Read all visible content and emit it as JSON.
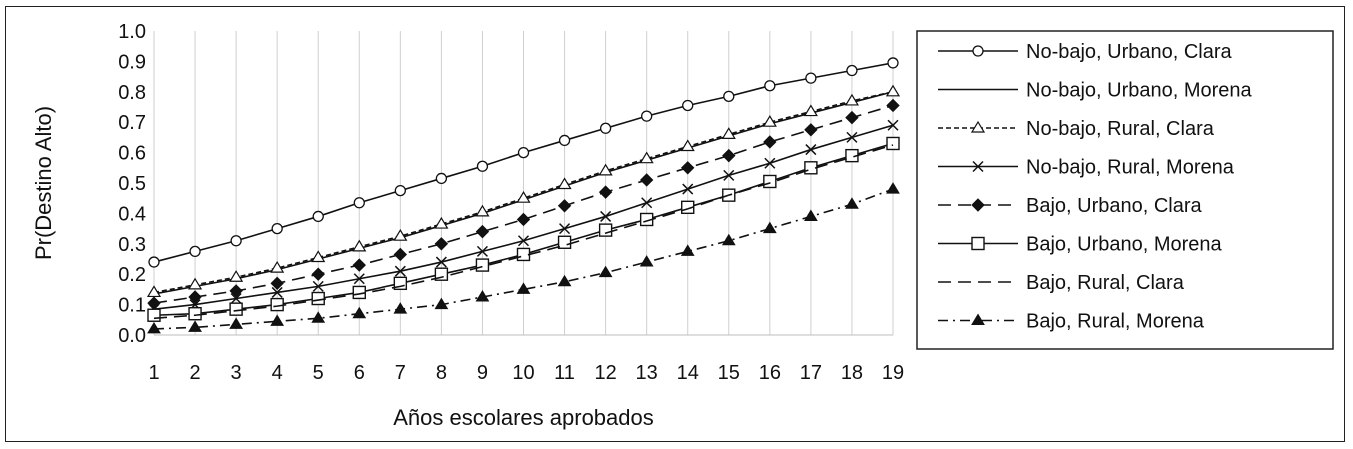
{
  "chart_data": {
    "type": "line",
    "xlabel": "Años escolares aprobados",
    "ylabel": "Pr(Destino Alto)",
    "x": [
      1,
      2,
      3,
      4,
      5,
      6,
      7,
      8,
      9,
      10,
      11,
      12,
      13,
      14,
      15,
      16,
      17,
      18,
      19
    ],
    "xlim": [
      1,
      19
    ],
    "ylim": [
      0.0,
      1.0
    ],
    "y_ticks": [
      "0.0",
      "0.1",
      "0.2",
      "0.3",
      "0.4",
      "0.5",
      "0.6",
      "0.7",
      "0.8",
      "0.9",
      "1.0"
    ],
    "grid": "vertical",
    "legend_position": "right",
    "series": [
      {
        "name": "No-bajo, Urbano, Clara",
        "line": "solid",
        "marker": "circle-open",
        "values": [
          0.24,
          0.275,
          0.31,
          0.35,
          0.39,
          0.435,
          0.475,
          0.515,
          0.555,
          0.6,
          0.64,
          0.68,
          0.72,
          0.755,
          0.785,
          0.82,
          0.845,
          0.87,
          0.895
        ]
      },
      {
        "name": "No-bajo, Urbano, Morena",
        "line": "solid",
        "marker": "none",
        "values": [
          0.135,
          0.16,
          0.185,
          0.215,
          0.25,
          0.285,
          0.32,
          0.36,
          0.4,
          0.445,
          0.49,
          0.535,
          0.575,
          0.615,
          0.655,
          0.695,
          0.73,
          0.765,
          0.8
        ]
      },
      {
        "name": "No-bajo, Rural, Clara",
        "line": "short-dash",
        "marker": "triangle-open",
        "values": [
          0.14,
          0.165,
          0.19,
          0.22,
          0.255,
          0.29,
          0.325,
          0.365,
          0.405,
          0.45,
          0.495,
          0.54,
          0.58,
          0.62,
          0.66,
          0.7,
          0.735,
          0.77,
          0.8
        ]
      },
      {
        "name": "No-bajo, Rural, Morena",
        "line": "solid",
        "marker": "x",
        "values": [
          0.085,
          0.1,
          0.12,
          0.14,
          0.16,
          0.185,
          0.21,
          0.24,
          0.275,
          0.31,
          0.35,
          0.39,
          0.435,
          0.48,
          0.525,
          0.565,
          0.61,
          0.65,
          0.69
        ]
      },
      {
        "name": "Bajo, Urbano, Clara",
        "line": "long-dash",
        "marker": "diamond-filled",
        "values": [
          0.105,
          0.125,
          0.145,
          0.17,
          0.2,
          0.23,
          0.265,
          0.3,
          0.34,
          0.38,
          0.425,
          0.47,
          0.51,
          0.55,
          0.59,
          0.635,
          0.675,
          0.715,
          0.755
        ]
      },
      {
        "name": "Bajo, Urbano, Morena",
        "line": "solid",
        "marker": "square-open",
        "values": [
          0.065,
          0.07,
          0.085,
          0.1,
          0.12,
          0.14,
          0.17,
          0.2,
          0.23,
          0.265,
          0.305,
          0.345,
          0.38,
          0.42,
          0.46,
          0.505,
          0.55,
          0.59,
          0.63
        ]
      },
      {
        "name": "Bajo, Rural, Clara",
        "line": "long-dash",
        "marker": "none",
        "values": [
          0.055,
          0.065,
          0.08,
          0.095,
          0.115,
          0.135,
          0.16,
          0.19,
          0.225,
          0.26,
          0.295,
          0.335,
          0.375,
          0.415,
          0.46,
          0.5,
          0.545,
          0.585,
          0.625
        ]
      },
      {
        "name": "Bajo, Rural, Morena",
        "line": "dash-dot",
        "marker": "triangle-filled",
        "values": [
          0.02,
          0.025,
          0.035,
          0.045,
          0.055,
          0.07,
          0.085,
          0.1,
          0.125,
          0.15,
          0.175,
          0.205,
          0.24,
          0.275,
          0.31,
          0.35,
          0.39,
          0.43,
          0.48
        ]
      }
    ]
  }
}
